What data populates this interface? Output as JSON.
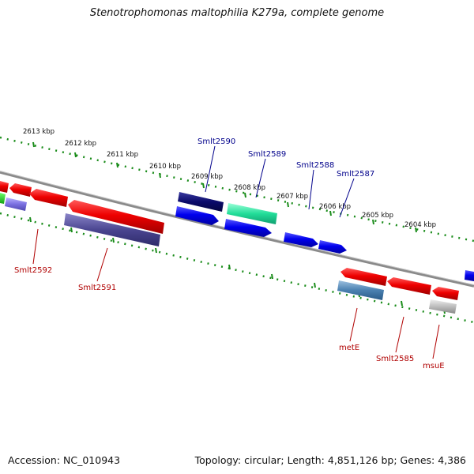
{
  "title": "Stenotrophomonas maltophilia K279a, complete genome",
  "footer": {
    "accession": "Accession: NC_010943",
    "topology": "Topology: circular; Length: 4,851,126 bp; Genes: 4,386"
  },
  "colors": {
    "tick": "#1a8c1a",
    "backbone": "#8c8c8c",
    "forward_gene": "#0000ee",
    "reverse_gene": "#ee0000",
    "label_forward": "#00008b",
    "label_reverse": "#b00000"
  },
  "kbp_labels": [
    "2613 kbp",
    "2612 kbp",
    "2611 kbp",
    "2610 kbp",
    "2609 kbp",
    "2608 kbp",
    "2607 kbp",
    "2606 kbp",
    "2605 kbp",
    "2604 kbp"
  ],
  "gene_labels_top": [
    "Smlt2590",
    "Smlt2589",
    "Smlt2588",
    "Smlt2587"
  ],
  "gene_labels_bottom": [
    "Smlt2592",
    "Smlt2591",
    "metE",
    "Smlt2585",
    "msuE"
  ]
}
